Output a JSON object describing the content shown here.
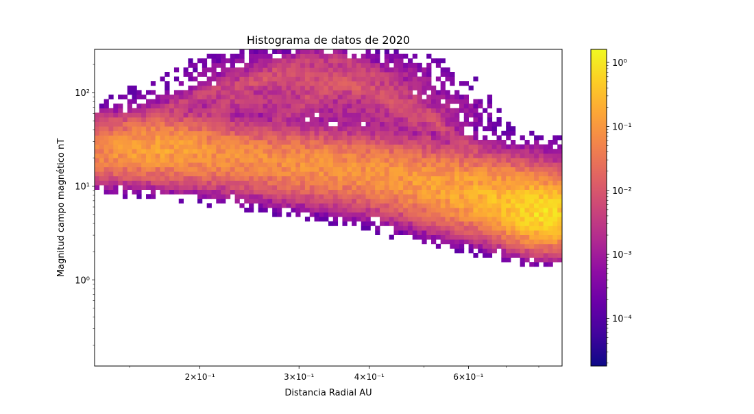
{
  "chart_data": {
    "type": "heatmap",
    "title": "Histograma de datos de 2020",
    "xlabel": "Distancia Radial AU",
    "ylabel": "Magnitud campo magnético nT",
    "x_scale": "log",
    "y_scale": "log",
    "xlim": [
      0.13,
      0.88
    ],
    "ylim": [
      0.12,
      290
    ],
    "x_ticks": [
      {
        "value": 0.2,
        "label": "2×10⁻¹"
      },
      {
        "value": 0.3,
        "label": "3×10⁻¹"
      },
      {
        "value": 0.4,
        "label": "4×10⁻¹"
      },
      {
        "value": 0.6,
        "label": "6×10⁻¹"
      }
    ],
    "y_ticks": [
      {
        "value": 1,
        "label": "10⁰"
      },
      {
        "value": 10,
        "label": "10¹"
      },
      {
        "value": 100,
        "label": "10²"
      }
    ],
    "colorbar": {
      "scale": "log",
      "colormap": "plasma",
      "range": [
        1.8e-05,
        1.6
      ],
      "ticks": [
        {
          "value": 1,
          "label": "10⁰"
        },
        {
          "value": 0.1,
          "label": "10⁻¹"
        },
        {
          "value": 0.01,
          "label": "10⁻²"
        },
        {
          "value": 0.001,
          "label": "10⁻³"
        },
        {
          "value": 0.0001,
          "label": "10⁻⁴"
        }
      ]
    },
    "grid": false,
    "bins": {
      "x_count": 100,
      "y_count": 70
    },
    "clusters": [
      {
        "x": 0.15,
        "y": 22,
        "sx": 0.07,
        "sy": 0.12,
        "peak": 0.07
      },
      {
        "x": 0.17,
        "y": 28,
        "sx": 0.06,
        "sy": 0.12,
        "peak": 0.09
      },
      {
        "x": 0.2,
        "y": 22,
        "sx": 0.08,
        "sy": 0.14,
        "peak": 0.04
      },
      {
        "x": 0.26,
        "y": 20,
        "sx": 0.1,
        "sy": 0.13,
        "peak": 0.05
      },
      {
        "x": 0.33,
        "y": 16,
        "sx": 0.09,
        "sy": 0.14,
        "peak": 0.04
      },
      {
        "x": 0.4,
        "y": 14,
        "sx": 0.09,
        "sy": 0.15,
        "peak": 0.05
      },
      {
        "x": 0.5,
        "y": 11,
        "sx": 0.07,
        "sy": 0.14,
        "peak": 0.06
      },
      {
        "x": 0.6,
        "y": 9,
        "sx": 0.07,
        "sy": 0.15,
        "peak": 0.1
      },
      {
        "x": 0.7,
        "y": 7,
        "sx": 0.06,
        "sy": 0.15,
        "peak": 0.2
      },
      {
        "x": 0.8,
        "y": 5.5,
        "sx": 0.04,
        "sy": 0.14,
        "peak": 0.5
      },
      {
        "x": 0.84,
        "y": 4.5,
        "sx": 0.035,
        "sy": 0.13,
        "peak": 0.35
      },
      {
        "x": 0.16,
        "y": 45,
        "sx": 0.06,
        "sy": 0.08,
        "peak": 0.01
      },
      {
        "x": 0.25,
        "y": 80,
        "sx": 0.1,
        "sy": 0.1,
        "peak": 0.003
      },
      {
        "x": 0.32,
        "y": 150,
        "sx": 0.1,
        "sy": 0.12,
        "peak": 0.004
      },
      {
        "x": 0.36,
        "y": 110,
        "sx": 0.08,
        "sy": 0.1,
        "peak": 0.003
      },
      {
        "x": 0.45,
        "y": 60,
        "sx": 0.08,
        "sy": 0.12,
        "peak": 0.003
      },
      {
        "x": 0.72,
        "y": 22,
        "sx": 0.07,
        "sy": 0.1,
        "peak": 0.001
      }
    ],
    "upper_arcs": [
      {
        "x0": 0.16,
        "x1": 0.62,
        "ypeak": 150,
        "y_start": 50,
        "y_end": 25,
        "level": 0.004
      },
      {
        "x0": 0.2,
        "x1": 0.55,
        "ypeak": 230,
        "y_start": 45,
        "y_end": 40,
        "level": 0.003
      },
      {
        "x0": 0.26,
        "x1": 0.52,
        "ypeak": 120,
        "y_start": 35,
        "y_end": 30,
        "level": 0.003
      }
    ]
  }
}
